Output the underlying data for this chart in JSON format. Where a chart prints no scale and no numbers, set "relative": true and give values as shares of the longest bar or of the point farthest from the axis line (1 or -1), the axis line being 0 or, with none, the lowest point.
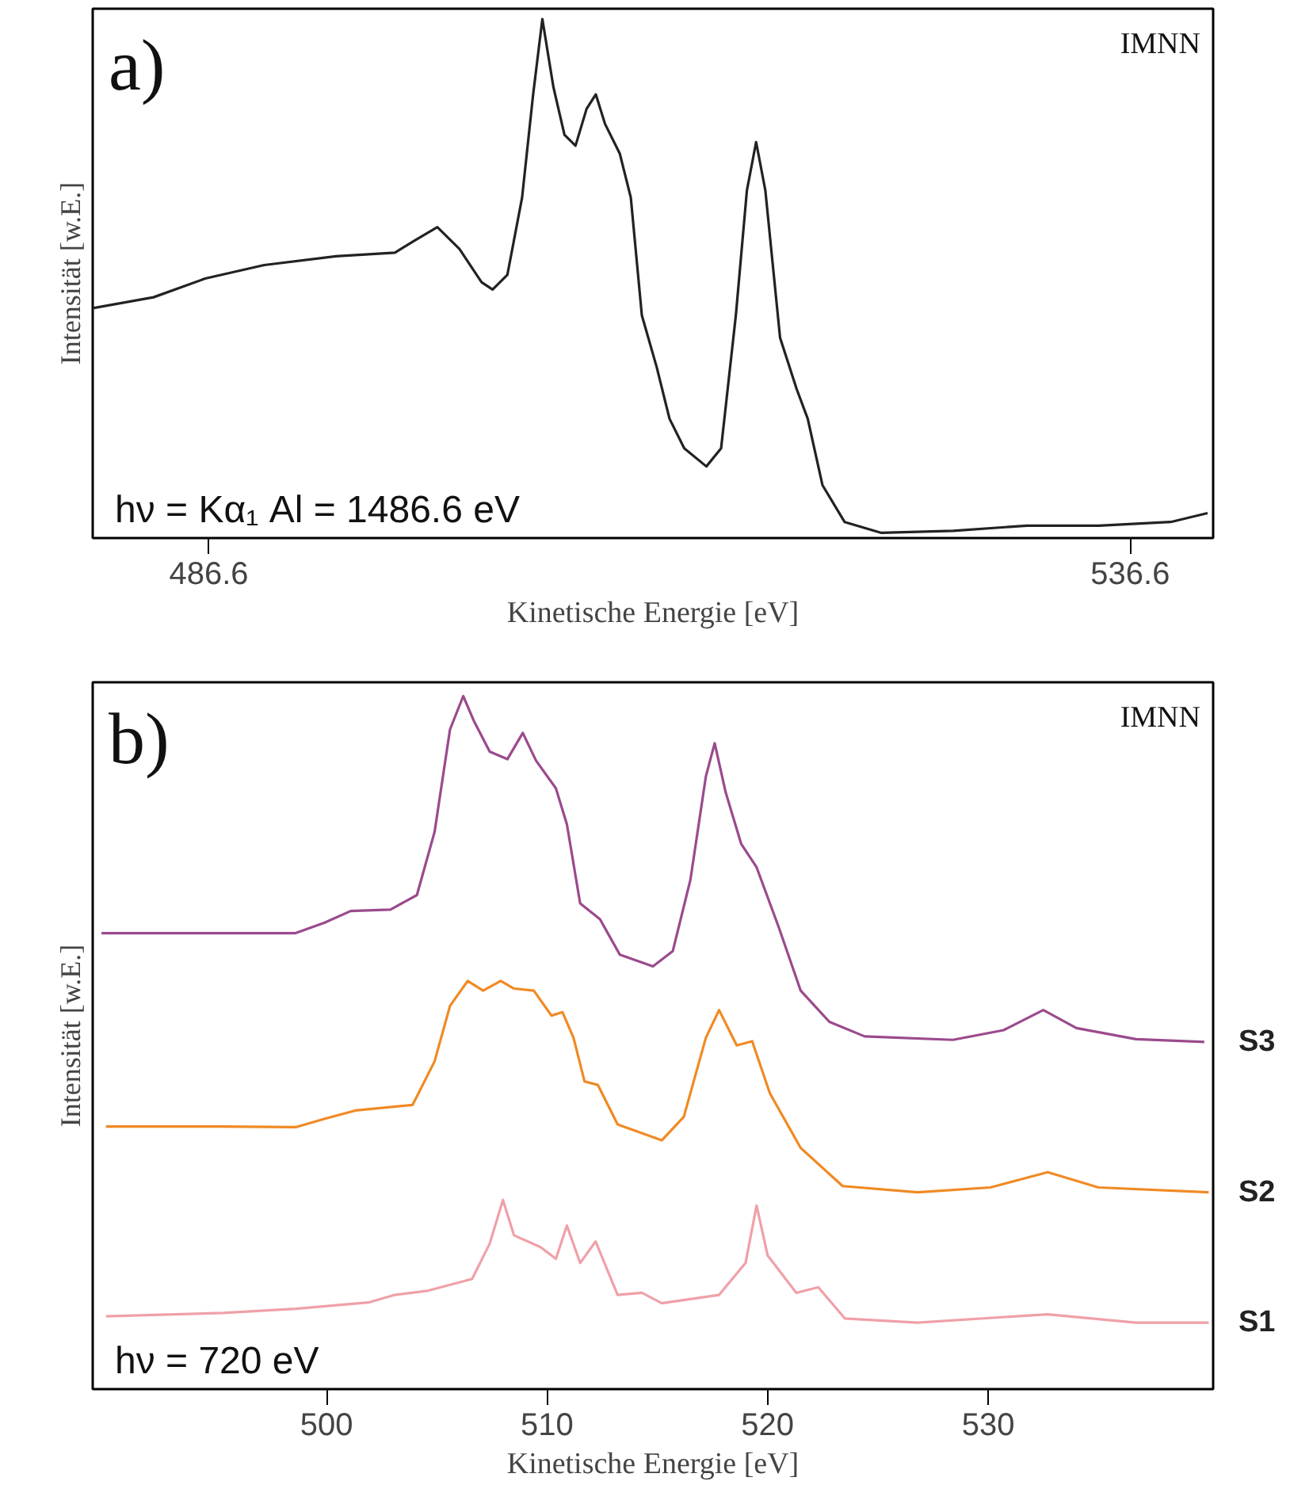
{
  "chart_data": [
    {
      "type": "line",
      "relative": true,
      "xlabel": "Kinetische Energie [eV]",
      "ylabel": "Intensität [w.E.]",
      "annotations": [
        "a)",
        "IMNN",
        "hν = Kα₁ Al = 1486.6 eV"
      ],
      "xlim": [
        480.3,
        541.1
      ],
      "xticks": [
        486.6,
        536.6
      ],
      "grid": false,
      "series": [
        {
          "color": "#222222",
          "x": [
            480.3,
            483.6,
            486.4,
            489.6,
            493.5,
            496.7,
            497.8,
            499.0,
            500.2,
            501.4,
            502.0,
            502.8,
            503.6,
            504.2,
            504.7,
            505.3,
            505.9,
            506.5,
            507.1,
            507.6,
            508.1,
            508.9,
            509.5,
            510.1,
            510.9,
            511.6,
            512.4,
            513.6,
            514.4,
            515.2,
            515.8,
            516.3,
            516.8,
            517.6,
            518.5,
            519.1,
            519.9,
            521.1,
            523.1,
            527.0,
            531.0,
            534.9,
            538.8,
            540.8
          ],
          "values": [
            0.443,
            0.464,
            0.5,
            0.526,
            0.543,
            0.55,
            0.574,
            0.599,
            0.557,
            0.493,
            0.479,
            0.507,
            0.656,
            0.855,
            1.0,
            0.869,
            0.777,
            0.756,
            0.827,
            0.855,
            0.798,
            0.741,
            0.656,
            0.429,
            0.33,
            0.23,
            0.173,
            0.138,
            0.173,
            0.429,
            0.67,
            0.763,
            0.67,
            0.386,
            0.287,
            0.23,
            0.102,
            0.031,
            0.01,
            0.014,
            0.024,
            0.024,
            0.031,
            0.048
          ]
        }
      ]
    },
    {
      "type": "line",
      "relative": true,
      "xlabel": "Kinetische Energie [eV]",
      "ylabel": "Intensität [w.E.]",
      "annotations": [
        "b)",
        "IMNN",
        "hν = 720 eV"
      ],
      "xlim": [
        489.4,
        540.2
      ],
      "xticks": [
        500,
        510,
        520,
        530
      ],
      "grid": false,
      "series": [
        {
          "name": "S3",
          "color": "#9b4a8c",
          "x": [
            489.8,
            495.3,
            498.6,
            499.9,
            501.1,
            502.9,
            504.1,
            504.9,
            505.6,
            506.2,
            506.7,
            507.4,
            508.2,
            508.9,
            509.5,
            510.4,
            510.9,
            511.5,
            512.4,
            513.3,
            514.8,
            515.7,
            516.5,
            517.2,
            517.6,
            518.1,
            518.8,
            519.5,
            520.5,
            521.5,
            522.8,
            524.4,
            528.4,
            530.7,
            532.5,
            534.0,
            536.7,
            539.8
          ],
          "values": [
            0.658,
            0.658,
            0.658,
            0.673,
            0.69,
            0.692,
            0.713,
            0.804,
            0.952,
            1.0,
            0.963,
            0.92,
            0.909,
            0.947,
            0.907,
            0.867,
            0.815,
            0.701,
            0.678,
            0.627,
            0.61,
            0.632,
            0.735,
            0.884,
            0.932,
            0.861,
            0.787,
            0.753,
            0.667,
            0.575,
            0.53,
            0.509,
            0.504,
            0.518,
            0.547,
            0.521,
            0.505,
            0.501
          ]
        },
        {
          "name": "S2",
          "color": "#f08a24",
          "x": [
            490.0,
            495.3,
            498.6,
            499.9,
            501.3,
            503.9,
            504.9,
            505.6,
            506.4,
            507.1,
            507.9,
            508.5,
            509.4,
            510.2,
            510.7,
            511.2,
            511.7,
            512.3,
            513.2,
            515.2,
            516.2,
            517.2,
            517.8,
            518.6,
            519.3,
            520.1,
            521.5,
            523.4,
            526.8,
            530.1,
            532.7,
            535.0,
            540.0
          ],
          "values": [
            0.379,
            0.379,
            0.378,
            0.39,
            0.402,
            0.41,
            0.473,
            0.553,
            0.589,
            0.575,
            0.589,
            0.578,
            0.575,
            0.539,
            0.544,
            0.507,
            0.444,
            0.439,
            0.382,
            0.359,
            0.393,
            0.507,
            0.547,
            0.496,
            0.502,
            0.427,
            0.348,
            0.293,
            0.284,
            0.291,
            0.313,
            0.291,
            0.284
          ]
        },
        {
          "name": "S1",
          "color": "#f0a0a8",
          "x": [
            490.0,
            495.3,
            498.6,
            501.9,
            503.1,
            504.6,
            506.6,
            507.4,
            508.0,
            508.5,
            509.7,
            510.4,
            510.9,
            511.5,
            512.2,
            513.2,
            514.3,
            515.2,
            517.8,
            519.0,
            519.5,
            520.0,
            521.3,
            522.3,
            523.5,
            526.8,
            532.7,
            536.7,
            540.0
          ],
          "values": [
            0.105,
            0.11,
            0.116,
            0.125,
            0.136,
            0.142,
            0.159,
            0.21,
            0.273,
            0.222,
            0.205,
            0.188,
            0.236,
            0.182,
            0.213,
            0.136,
            0.139,
            0.124,
            0.136,
            0.182,
            0.265,
            0.193,
            0.139,
            0.147,
            0.102,
            0.096,
            0.108,
            0.096,
            0.096
          ]
        }
      ]
    }
  ]
}
